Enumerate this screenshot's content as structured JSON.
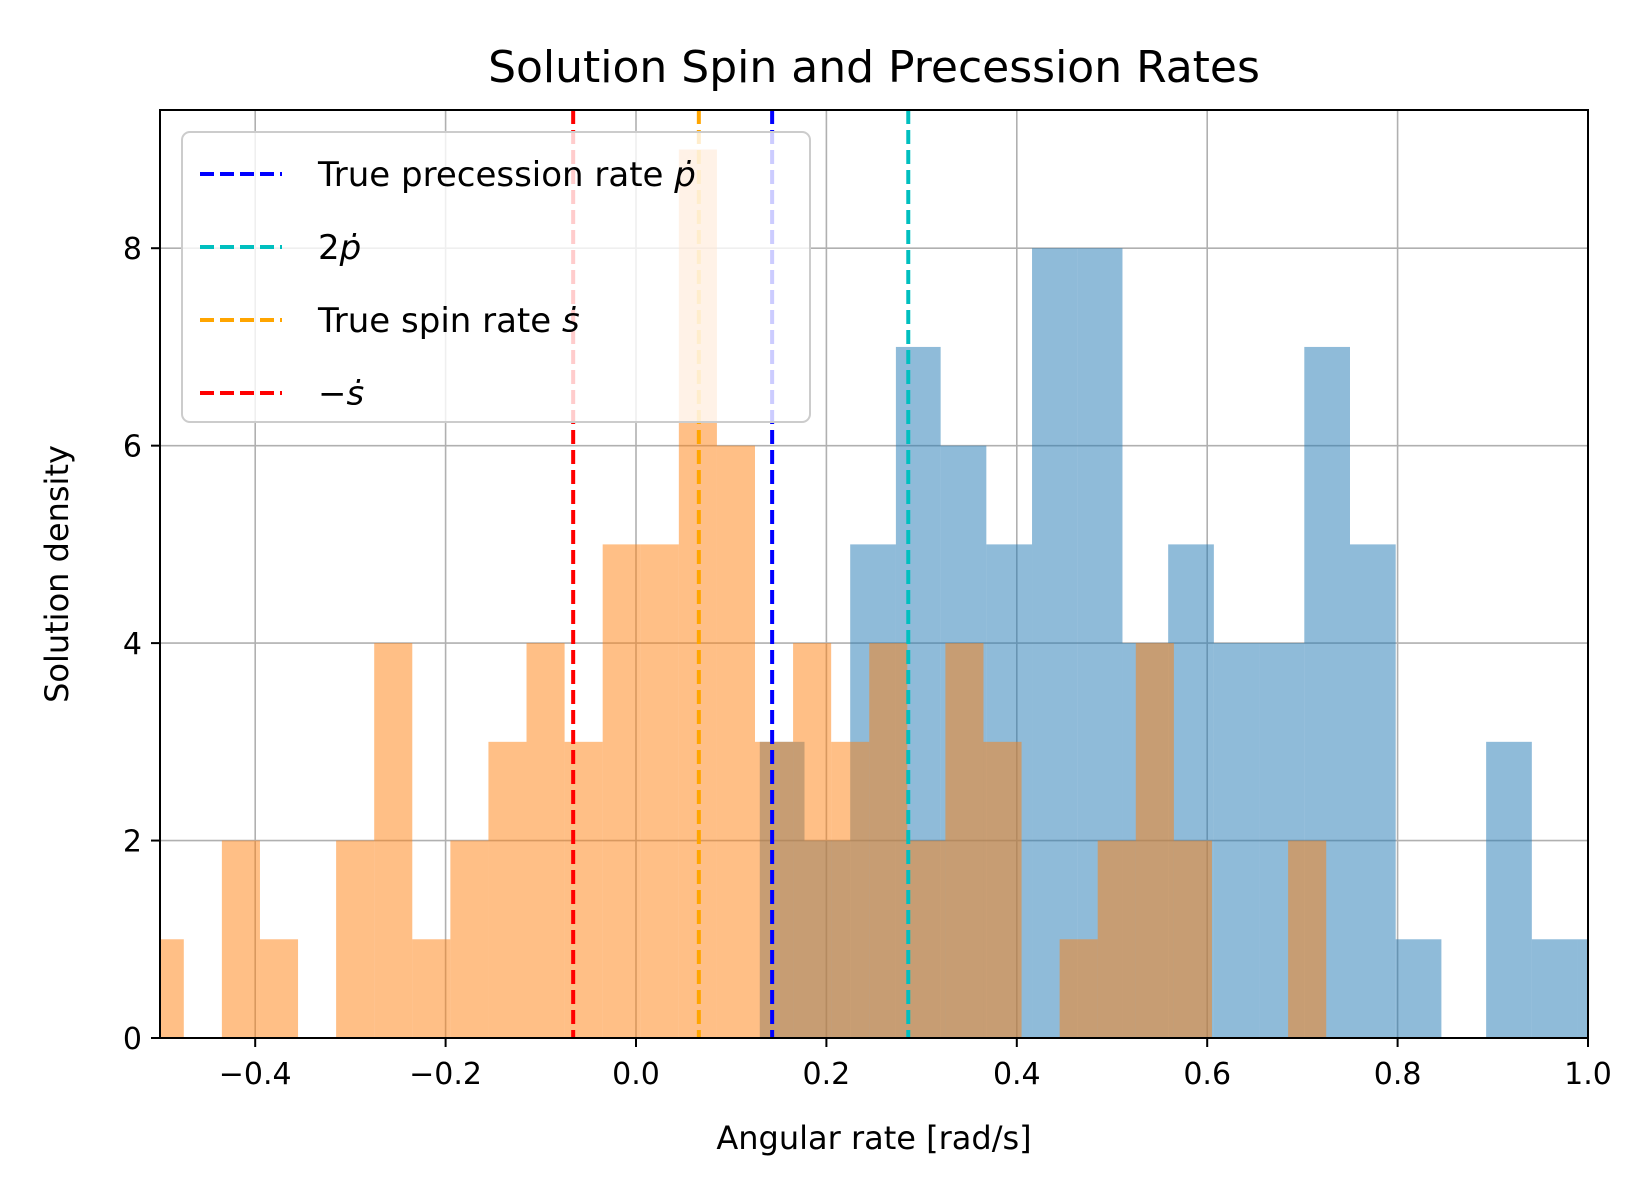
{
  "chart_data": {
    "type": "histogram",
    "title": "Solution Spin and Precession Rates",
    "xlabel": "Angular rate [rad/s]",
    "ylabel": "Solution density",
    "xlim": [
      -0.5,
      1.0
    ],
    "ylim": [
      0,
      9.4
    ],
    "x_ticks": [
      -0.4,
      -0.2,
      0.0,
      0.2,
      0.4,
      0.6,
      0.8,
      1.0
    ],
    "x_tick_labels": [
      "−0.4",
      "−0.2",
      "0.0",
      "0.2",
      "0.4",
      "0.6",
      "0.8",
      "1.0"
    ],
    "y_ticks": [
      0,
      2,
      4,
      6,
      8
    ],
    "y_tick_labels": [
      "0",
      "2",
      "4",
      "6",
      "8"
    ],
    "grid": true,
    "legend_position": "top-left",
    "series": [
      {
        "color": "#1f77b4",
        "opacity": 0.5,
        "bins": [
          {
            "x0": 0.13,
            "x1": 0.177,
            "y": 3
          },
          {
            "x0": 0.177,
            "x1": 0.225,
            "y": 2
          },
          {
            "x0": 0.225,
            "x1": 0.273,
            "y": 5
          },
          {
            "x0": 0.273,
            "x1": 0.32,
            "y": 7
          },
          {
            "x0": 0.32,
            "x1": 0.368,
            "y": 6
          },
          {
            "x0": 0.368,
            "x1": 0.416,
            "y": 5
          },
          {
            "x0": 0.416,
            "x1": 0.464,
            "y": 8
          },
          {
            "x0": 0.464,
            "x1": 0.511,
            "y": 8
          },
          {
            "x0": 0.511,
            "x1": 0.559,
            "y": 4
          },
          {
            "x0": 0.559,
            "x1": 0.607,
            "y": 5
          },
          {
            "x0": 0.607,
            "x1": 0.655,
            "y": 4
          },
          {
            "x0": 0.655,
            "x1": 0.702,
            "y": 4
          },
          {
            "x0": 0.702,
            "x1": 0.75,
            "y": 7
          },
          {
            "x0": 0.75,
            "x1": 0.798,
            "y": 5
          },
          {
            "x0": 0.798,
            "x1": 0.846,
            "y": 1
          },
          {
            "x0": 0.846,
            "x1": 0.893,
            "y": 0
          },
          {
            "x0": 0.893,
            "x1": 0.941,
            "y": 3
          },
          {
            "x0": 0.941,
            "x1": 0.989,
            "y": 1
          },
          {
            "x0": 0.989,
            "x1": 1.0,
            "y": 1
          }
        ]
      },
      {
        "color": "#ff7f0e",
        "opacity": 0.5,
        "bins": [
          {
            "x0": -0.5,
            "x1": -0.475,
            "y": 1
          },
          {
            "x0": -0.475,
            "x1": -0.435,
            "y": 0
          },
          {
            "x0": -0.435,
            "x1": -0.395,
            "y": 2
          },
          {
            "x0": -0.395,
            "x1": -0.355,
            "y": 1
          },
          {
            "x0": -0.355,
            "x1": -0.315,
            "y": 0
          },
          {
            "x0": -0.315,
            "x1": -0.275,
            "y": 2
          },
          {
            "x0": -0.275,
            "x1": -0.235,
            "y": 4
          },
          {
            "x0": -0.235,
            "x1": -0.195,
            "y": 1
          },
          {
            "x0": -0.195,
            "x1": -0.155,
            "y": 2
          },
          {
            "x0": -0.155,
            "x1": -0.115,
            "y": 3
          },
          {
            "x0": -0.115,
            "x1": -0.075,
            "y": 4
          },
          {
            "x0": -0.075,
            "x1": -0.035,
            "y": 3
          },
          {
            "x0": -0.035,
            "x1": 0.005,
            "y": 5
          },
          {
            "x0": 0.005,
            "x1": 0.045,
            "y": 5
          },
          {
            "x0": 0.045,
            "x1": 0.085,
            "y": 9
          },
          {
            "x0": 0.085,
            "x1": 0.125,
            "y": 6
          },
          {
            "x0": 0.125,
            "x1": 0.165,
            "y": 3
          },
          {
            "x0": 0.165,
            "x1": 0.205,
            "y": 4
          },
          {
            "x0": 0.205,
            "x1": 0.245,
            "y": 3
          },
          {
            "x0": 0.245,
            "x1": 0.285,
            "y": 4
          },
          {
            "x0": 0.285,
            "x1": 0.325,
            "y": 2
          },
          {
            "x0": 0.325,
            "x1": 0.365,
            "y": 4
          },
          {
            "x0": 0.365,
            "x1": 0.405,
            "y": 3
          },
          {
            "x0": 0.405,
            "x1": 0.445,
            "y": 0
          },
          {
            "x0": 0.445,
            "x1": 0.485,
            "y": 1
          },
          {
            "x0": 0.485,
            "x1": 0.525,
            "y": 2
          },
          {
            "x0": 0.525,
            "x1": 0.565,
            "y": 4
          },
          {
            "x0": 0.565,
            "x1": 0.605,
            "y": 2
          },
          {
            "x0": 0.605,
            "x1": 0.645,
            "y": 0
          },
          {
            "x0": 0.645,
            "x1": 0.685,
            "y": 0
          },
          {
            "x0": 0.685,
            "x1": 0.725,
            "y": 2
          }
        ]
      }
    ],
    "vlines": [
      {
        "x": 0.143,
        "color": "#0000ff",
        "legend_text": "True precession rate ",
        "legend_math": "ṗ"
      },
      {
        "x": 0.286,
        "color": "#00bfbf",
        "legend_text": "2",
        "legend_math": "ṗ"
      },
      {
        "x": 0.066,
        "color": "#ffa500",
        "legend_text": "True spin rate ",
        "legend_math": "ṡ"
      },
      {
        "x": -0.066,
        "color": "#ff0000",
        "legend_text": "−",
        "legend_math": "ṡ"
      }
    ]
  }
}
